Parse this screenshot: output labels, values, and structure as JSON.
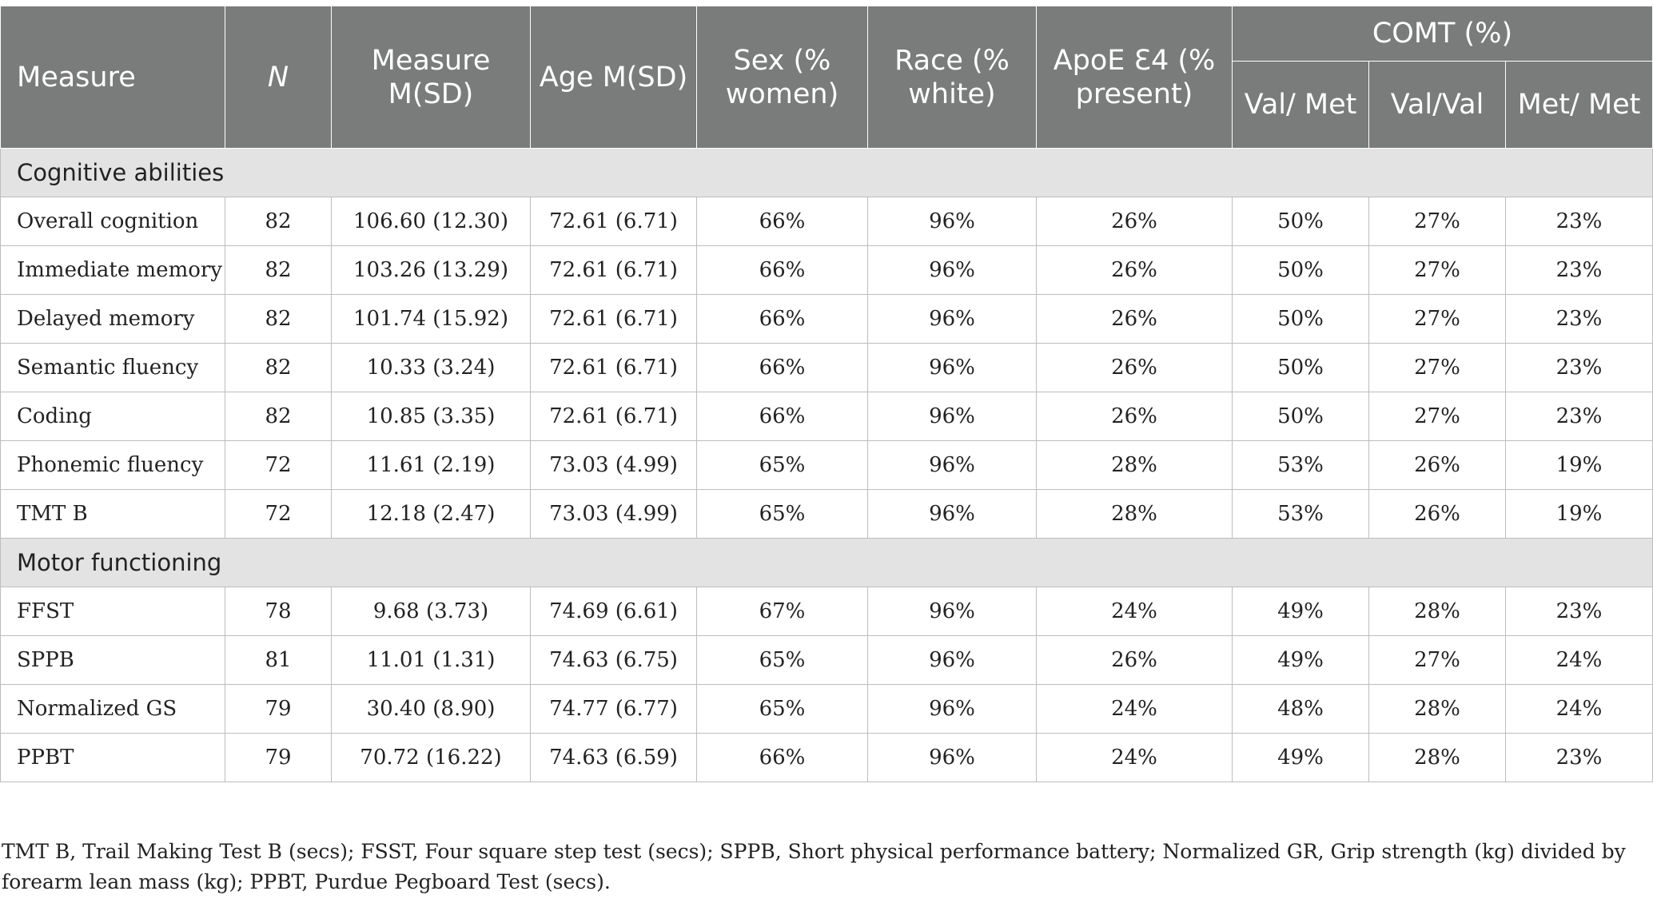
{
  "table": {
    "headers": {
      "measure": "Measure",
      "n": "N",
      "measure_msd": "Measure M(SD)",
      "age": "Age M(SD)",
      "sex": "Sex (% women)",
      "race": "Race (% white)",
      "apoe": "ApoE Ɛ4 (% present)",
      "comt": "COMT (%)",
      "val_met": "Val/ Met",
      "val_val": "Val/Val",
      "met_met": "Met/ Met"
    },
    "sections": [
      {
        "title": "Cognitive abilities",
        "rows": [
          {
            "measure": "Overall cognition",
            "n": "82",
            "msd": "106.60 (12.30)",
            "age": "72.61 (6.71)",
            "sex": "66%",
            "race": "96%",
            "apoe": "26%",
            "val_met": "50%",
            "val_val": "27%",
            "met_met": "23%"
          },
          {
            "measure": "Immediate memory",
            "n": "82",
            "msd": "103.26 (13.29)",
            "age": "72.61 (6.71)",
            "sex": "66%",
            "race": "96%",
            "apoe": "26%",
            "val_met": "50%",
            "val_val": "27%",
            "met_met": "23%"
          },
          {
            "measure": "Delayed memory",
            "n": "82",
            "msd": "101.74 (15.92)",
            "age": "72.61 (6.71)",
            "sex": "66%",
            "race": "96%",
            "apoe": "26%",
            "val_met": "50%",
            "val_val": "27%",
            "met_met": "23%"
          },
          {
            "measure": "Semantic fluency",
            "n": "82",
            "msd": "10.33 (3.24)",
            "age": "72.61 (6.71)",
            "sex": "66%",
            "race": "96%",
            "apoe": "26%",
            "val_met": "50%",
            "val_val": "27%",
            "met_met": "23%"
          },
          {
            "measure": "Coding",
            "n": "82",
            "msd": "10.85 (3.35)",
            "age": "72.61 (6.71)",
            "sex": "66%",
            "race": "96%",
            "apoe": "26%",
            "val_met": "50%",
            "val_val": "27%",
            "met_met": "23%"
          },
          {
            "measure": "Phonemic fluency",
            "n": "72",
            "msd": "11.61 (2.19)",
            "age": "73.03 (4.99)",
            "sex": "65%",
            "race": "96%",
            "apoe": "28%",
            "val_met": "53%",
            "val_val": "26%",
            "met_met": "19%"
          },
          {
            "measure": "TMT B",
            "n": "72",
            "msd": "12.18 (2.47)",
            "age": "73.03 (4.99)",
            "sex": "65%",
            "race": "96%",
            "apoe": "28%",
            "val_met": "53%",
            "val_val": "26%",
            "met_met": "19%"
          }
        ]
      },
      {
        "title": "Motor functioning",
        "rows": [
          {
            "measure": "FFST",
            "n": "78",
            "msd": "9.68 (3.73)",
            "age": "74.69 (6.61)",
            "sex": "67%",
            "race": "96%",
            "apoe": "24%",
            "val_met": "49%",
            "val_val": "28%",
            "met_met": "23%"
          },
          {
            "measure": "SPPB",
            "n": "81",
            "msd": "11.01 (1.31)",
            "age": "74.63 (6.75)",
            "sex": "65%",
            "race": "96%",
            "apoe": "26%",
            "val_met": "49%",
            "val_val": "27%",
            "met_met": "24%"
          },
          {
            "measure": "Normalized GS",
            "n": "79",
            "msd": "30.40 (8.90)",
            "age": "74.77 (6.77)",
            "sex": "65%",
            "race": "96%",
            "apoe": "24%",
            "val_met": "48%",
            "val_val": "28%",
            "met_met": "24%"
          },
          {
            "measure": "PPBT",
            "n": "79",
            "msd": "70.72 (16.22)",
            "age": "74.63 (6.59)",
            "sex": "66%",
            "race": "96%",
            "apoe": "24%",
            "val_met": "49%",
            "val_val": "28%",
            "met_met": "23%"
          }
        ]
      }
    ]
  },
  "footnote": "TMT B, Trail Making Test B (secs); FSST, Four square step test (secs); SPPB, Short physical performance battery; Normalized GR, Grip strength (kg) divided by forearm lean mass (kg); PPBT, Purdue Pegboard Test (secs)."
}
